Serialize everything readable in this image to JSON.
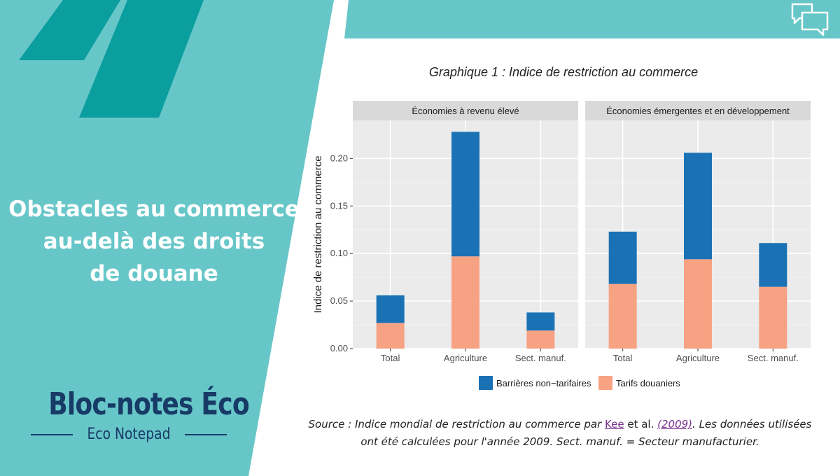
{
  "sidebar": {
    "headline_lines": [
      "Obstacles au commerce",
      "au-delà des droits",
      "de douane"
    ],
    "brand_name": "Bloc-notes Éco",
    "brand_sub": "Eco Notepad"
  },
  "colors": {
    "teal": "#67c6c8",
    "dark_teal": "#0a9e9e",
    "brand_navy": "#173a66",
    "barrieres": "#1a72b5",
    "tarifs": "#f7a283"
  },
  "icons": {
    "chat": "chat-bubbles-icon"
  },
  "graph_title": "Graphique 1 : Indice de restriction au commerce",
  "chart_data": {
    "type": "bar",
    "stacked": true,
    "ylabel": "Indice de restriction au commerce",
    "ylim": [
      0,
      0.24
    ],
    "yticks": [
      "0.00",
      "0.05",
      "0.10",
      "0.15",
      "0.20"
    ],
    "ytick_values": [
      0,
      0.05,
      0.1,
      0.15,
      0.2
    ],
    "grid": true,
    "legend_position": "bottom",
    "categories": [
      "Total",
      "Agriculture",
      "Sect. manuf."
    ],
    "panels": [
      {
        "title": "Économies à revenu élevé",
        "series": [
          {
            "name": "Tarifs douaniers",
            "values": [
              0.027,
              0.097,
              0.019
            ]
          },
          {
            "name": "Barrières non−tarifaires",
            "values": [
              0.029,
              0.131,
              0.019
            ]
          }
        ]
      },
      {
        "title": "Économies émergentes et en développement",
        "series": [
          {
            "name": "Tarifs douaniers",
            "values": [
              0.068,
              0.094,
              0.065
            ]
          },
          {
            "name": "Barrières non−tarifaires",
            "values": [
              0.055,
              0.112,
              0.046
            ]
          }
        ]
      }
    ],
    "legend": [
      "Barrières non−tarifaires",
      "Tarifs douaniers"
    ]
  },
  "source": {
    "prefix": "Source : Indice mondial de restriction au commerce par ",
    "author": "Kee",
    "etal": " et al. ",
    "year": "(2009)",
    "suffix": ". Les données utilisées",
    "line2": "ont été calculées pour l'année 2009. Sect. manuf. = Secteur manufacturier."
  }
}
